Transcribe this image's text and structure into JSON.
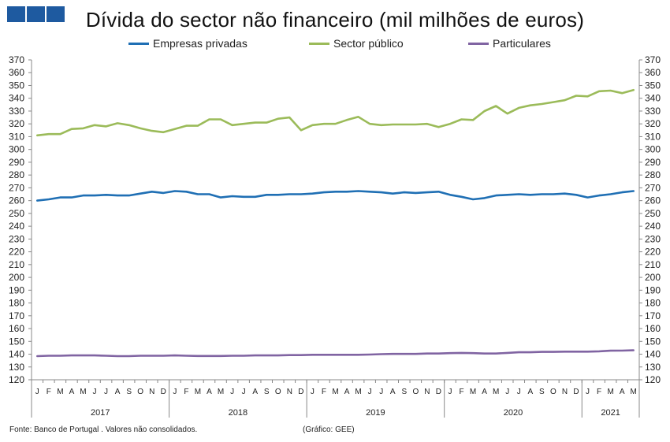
{
  "header": {
    "title": "Dívida do sector não financeiro (mil milhões de euros)",
    "logo_color": "#1e5aa0"
  },
  "footer": {
    "source": "Fonte: Banco de Portugal . Valores não consolidados.",
    "credit": "(Gráfico: GEE)"
  },
  "chart_data": {
    "type": "line",
    "title": "Dívida do sector não financeiro (mil milhões de euros)",
    "xlabel": "",
    "ylabel": "",
    "ylim": [
      120,
      370
    ],
    "ytick_step": 10,
    "grid": false,
    "legend_position": "top",
    "secondary_y_axis": true,
    "month_labels": [
      "J",
      "F",
      "M",
      "A",
      "M",
      "J",
      "J",
      "A",
      "S",
      "O",
      "N",
      "D",
      "J",
      "F",
      "M",
      "A",
      "M",
      "J",
      "J",
      "A",
      "S",
      "O",
      "N",
      "D",
      "J",
      "F",
      "M",
      "A",
      "M",
      "J",
      "J",
      "A",
      "S",
      "O",
      "N",
      "D",
      "J",
      "F",
      "M",
      "A",
      "M",
      "J",
      "J",
      "A",
      "S",
      "O",
      "N",
      "D",
      "J",
      "F",
      "M",
      "A",
      "M"
    ],
    "years": [
      {
        "label": "2017",
        "months": 12
      },
      {
        "label": "2018",
        "months": 12
      },
      {
        "label": "2019",
        "months": 12
      },
      {
        "label": "2020",
        "months": 12
      },
      {
        "label": "2021",
        "months": 5
      }
    ],
    "series": [
      {
        "name": "Empresas privadas",
        "color": "#1f6fb4",
        "values": [
          260,
          261,
          262.5,
          262.5,
          264,
          264,
          264.5,
          264,
          264,
          265.5,
          267,
          266,
          267.5,
          267,
          265,
          265,
          262.5,
          263.5,
          263,
          263,
          264.5,
          264.5,
          265,
          265,
          265.5,
          266.5,
          267,
          267,
          267.5,
          267,
          266.5,
          265.5,
          266.5,
          266,
          266.5,
          267,
          264.5,
          263,
          261,
          262,
          264,
          264.5,
          265,
          264.5,
          265,
          265,
          265.5,
          264.5,
          262.5,
          264,
          265,
          266.5,
          267.5
        ]
      },
      {
        "name": "Sector público",
        "color": "#9bbb59",
        "values": [
          311,
          312,
          312,
          316,
          316.5,
          319,
          318,
          320.5,
          319,
          316.5,
          314.5,
          313.5,
          316,
          318.5,
          318.5,
          323.5,
          323.5,
          319,
          320,
          321,
          321,
          324,
          325,
          315,
          319,
          320,
          320,
          323,
          325.5,
          320,
          319,
          319.5,
          319.5,
          319.5,
          320,
          317.5,
          320,
          323.5,
          323,
          330,
          334,
          328,
          332.5,
          334.5,
          335.5,
          337,
          338.5,
          342,
          341.5,
          345.5,
          346,
          344,
          346.5
        ]
      },
      {
        "name": "Particulares",
        "color": "#8064a2",
        "values": [
          138.5,
          138.8,
          138.8,
          139,
          139,
          139,
          138.8,
          138.5,
          138.5,
          138.8,
          138.8,
          138.8,
          139,
          138.8,
          138.6,
          138.6,
          138.6,
          138.8,
          138.8,
          139,
          139,
          139,
          139.3,
          139.3,
          139.5,
          139.5,
          139.5,
          139.5,
          139.5,
          139.7,
          140,
          140.2,
          140.2,
          140.2,
          140.5,
          140.5,
          140.8,
          141,
          140.8,
          140.5,
          140.5,
          141,
          141.5,
          141.5,
          141.8,
          141.8,
          142,
          142,
          142,
          142.2,
          142.7,
          142.8,
          143
        ]
      }
    ]
  }
}
